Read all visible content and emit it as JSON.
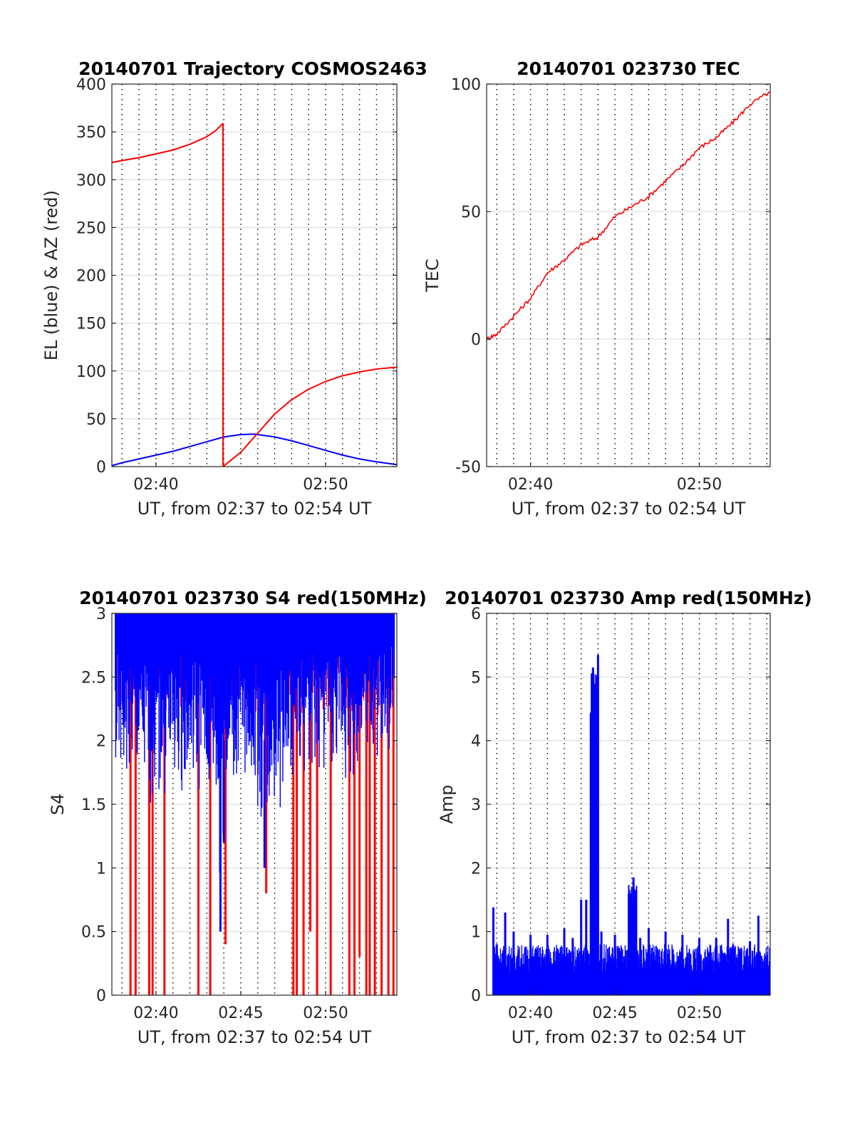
{
  "colors": {
    "el": "#0000ff",
    "az": "#ff0000",
    "tec": "#ff0000",
    "s4_red": "#ff0000",
    "s4_blue": "#0000ff",
    "amp": "#0000ff",
    "grid_major": "#d9d9d9",
    "grid_minor": "#000000"
  },
  "chart_data": [
    {
      "id": "trajectory",
      "type": "line",
      "title": "20140701 Trajectory COSMOS2463",
      "xlabel": "UT, from 02:37 to 02:54 UT",
      "ylabel": "EL (blue) & AZ (red)",
      "x_unit": "minutes after 02:00 UT",
      "xlim": [
        37.4,
        54.2
      ],
      "ylim": [
        0,
        400
      ],
      "xticks": [
        40,
        50
      ],
      "xtick_labels": [
        "02:40",
        "02:50"
      ],
      "yticks": [
        0,
        50,
        100,
        150,
        200,
        250,
        300,
        350,
        400
      ],
      "ytick_labels": [
        "0",
        "50",
        "100",
        "150",
        "200",
        "250",
        "300",
        "350",
        "400"
      ],
      "grid": true,
      "series": [
        {
          "key": "el",
          "x": [
            37.4,
            38,
            39,
            40,
            41,
            42,
            43,
            44,
            45,
            45.8,
            47,
            48,
            49,
            50,
            51,
            52,
            53,
            54.2
          ],
          "values": [
            1,
            4,
            8,
            12,
            16,
            21,
            26,
            31,
            33.5,
            34,
            31,
            27,
            22,
            17,
            12,
            8,
            5,
            2
          ]
        },
        {
          "key": "az_pre",
          "x": [
            37.4,
            38,
            39,
            40,
            41,
            42,
            43,
            43.5,
            43.95
          ],
          "values": [
            318,
            320,
            323,
            327,
            331,
            337,
            345,
            351,
            359
          ]
        },
        {
          "key": "az_post",
          "x": [
            43.95,
            45,
            46,
            47,
            48,
            49,
            50,
            51,
            52,
            53,
            54.2
          ],
          "values": [
            0,
            15,
            35,
            55,
            70,
            81,
            89,
            95,
            99,
            102,
            104
          ]
        }
      ]
    },
    {
      "id": "tec",
      "type": "line",
      "title": "20140701 023730 TEC",
      "xlabel": "UT, from 02:37 to 02:54 UT",
      "ylabel": "TEC",
      "x_unit": "minutes after 02:00 UT",
      "xlim": [
        37.4,
        54.2
      ],
      "ylim": [
        -50,
        100
      ],
      "xticks": [
        40,
        50
      ],
      "xtick_labels": [
        "02:40",
        "02:50"
      ],
      "yticks": [
        -50,
        0,
        50,
        100
      ],
      "ytick_labels": [
        "-50",
        "0",
        "50",
        "100"
      ],
      "grid": true,
      "series": [
        {
          "key": "tec",
          "x": [
            37.4,
            38,
            39,
            40,
            41,
            42,
            43,
            44,
            45,
            46,
            47,
            48,
            49,
            50,
            51,
            52,
            53,
            54.2
          ],
          "values": [
            0,
            2,
            9,
            16,
            26,
            31,
            37,
            40,
            48,
            52,
            56,
            62,
            68,
            75,
            79,
            85,
            92,
            97
          ]
        }
      ]
    },
    {
      "id": "s4",
      "type": "line",
      "title": "20140701 023730 S4 red(150MHz)",
      "xlabel": "UT, from 02:37 to 02:54 UT",
      "ylabel": "S4",
      "x_unit": "minutes after 02:00 UT",
      "xlim": [
        37.4,
        54.2
      ],
      "ylim": [
        0,
        3
      ],
      "xticks": [
        40,
        45,
        50
      ],
      "xtick_labels": [
        "02:40",
        "02:45",
        "02:50"
      ],
      "yticks": [
        0,
        0.5,
        1,
        1.5,
        2,
        2.5,
        3
      ],
      "ytick_labels": [
        "0",
        "0.5",
        "1",
        "1.5",
        "2",
        "2.5",
        "3"
      ],
      "grid": true,
      "series": [
        {
          "key": "s4_red",
          "x": [
            38.5,
            38.8,
            39.6,
            39.8,
            40.5,
            42.5,
            43.2,
            44.1,
            46.5,
            48.1,
            48.3,
            48.7,
            49.1,
            49.5,
            50.3,
            51.4,
            51.7,
            52.0,
            52.4,
            52.6,
            52.9,
            53.3,
            53.7,
            54.0
          ],
          "values": [
            0,
            0,
            0,
            0,
            0,
            0,
            0,
            0.4,
            0.8,
            0,
            0,
            0,
            0.5,
            0,
            0,
            0,
            0,
            0.3,
            0,
            0,
            0,
            0,
            0,
            0
          ]
        },
        {
          "key": "s4_blue",
          "x": [
            37.6,
            38.0,
            38.5,
            39.0,
            39.5,
            40.0,
            40.5,
            41.0,
            41.5,
            42.0,
            42.5,
            43.0,
            43.5,
            43.8,
            44.0,
            44.5,
            45.0,
            45.5,
            46.0,
            46.4,
            47.0,
            47.5,
            48.0,
            48.5,
            49.0,
            49.5,
            50.0,
            50.5,
            51.0,
            51.5,
            52.0,
            52.5,
            53.0,
            53.5,
            54.0
          ],
          "values": [
            1.4,
            1.6,
            1.5,
            1.5,
            1.4,
            1.4,
            1.5,
            1.5,
            1.6,
            1.5,
            1.6,
            1.4,
            1.3,
            0.5,
            1.2,
            1.5,
            1.6,
            1.6,
            1.4,
            1.0,
            1.5,
            1.4,
            1.6,
            1.7,
            1.8,
            1.7,
            1.8,
            1.6,
            1.7,
            1.6,
            1.5,
            1.8,
            1.7,
            1.8,
            2.0
          ]
        }
      ]
    },
    {
      "id": "amp",
      "type": "line",
      "title": "20140701 023730 Amp red(150MHz)",
      "xlabel": "UT, from 02:37 to 02:54 UT",
      "ylabel": "Amp",
      "x_unit": "minutes after 02:00 UT",
      "xlim": [
        37.4,
        54.2
      ],
      "ylim": [
        0,
        6
      ],
      "xticks": [
        40,
        45,
        50
      ],
      "xtick_labels": [
        "02:40",
        "02:45",
        "02:50"
      ],
      "yticks": [
        0,
        1,
        2,
        3,
        4,
        5,
        6
      ],
      "ytick_labels": [
        "0",
        "1",
        "2",
        "3",
        "4",
        "5",
        "6"
      ],
      "grid": true,
      "series": [
        {
          "key": "amp",
          "x": [
            37.8,
            38.0,
            38.5,
            39.0,
            40.0,
            41.0,
            42.0,
            42.5,
            43.0,
            43.3,
            43.7,
            43.85,
            44.0,
            44.2,
            45.0,
            45.9,
            46.1,
            46.5,
            47.0,
            48.0,
            49.0,
            50.0,
            51.0,
            51.7,
            52.0,
            53.0,
            53.5,
            54.2
          ],
          "values": [
            1.38,
            0.8,
            1.3,
            1.0,
            0.95,
            0.95,
            1.05,
            0.9,
            1.5,
            1.5,
            5.15,
            4.4,
            5.35,
            1.0,
            0.95,
            1.6,
            1.85,
            0.9,
            1.05,
            1.0,
            0.95,
            0.9,
            0.9,
            1.2,
            0.8,
            0.85,
            1.25,
            0.75
          ]
        }
      ]
    }
  ]
}
